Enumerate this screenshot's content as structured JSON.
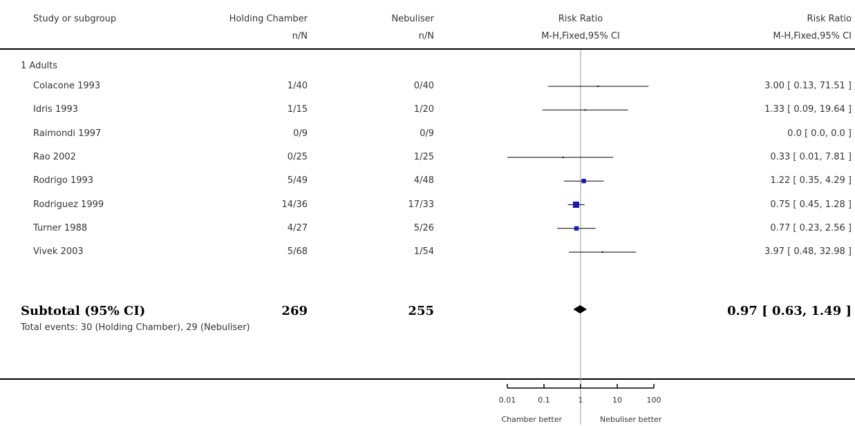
{
  "header": {
    "study": "Study or subgroup",
    "group1": "Holding Chamber",
    "group1_sub": "n/N",
    "group2": "Nebuliser",
    "group2_sub": "n/N",
    "plot_title": "Risk Ratio",
    "plot_sub": "M-H,Fixed,95% CI",
    "effect_title": "Risk Ratio",
    "effect_sub": "M-H,Fixed,95% CI"
  },
  "subgroup_label": "1 Adults",
  "subtotal": {
    "label": "Subtotal (95% CI)",
    "n1": "269",
    "n2": "255",
    "ci_text": "0.97 [ 0.63, 1.49 ]"
  },
  "total_events": "Total events: 30 (Holding Chamber), 29 (Nebuliser)",
  "footer": {
    "left": "Chamber better",
    "right": "Nebuliser better"
  },
  "chart_data": {
    "type": "forest",
    "scale": "log",
    "xlim": [
      0.01,
      100
    ],
    "ticks": [
      "0.01",
      "0.1",
      "1",
      "10",
      "100"
    ],
    "tick_values": [
      0.01,
      0.1,
      1,
      10,
      100
    ],
    "null_value": 1,
    "studies": [
      {
        "name": "Colacone 1993",
        "e1": "1/40",
        "e2": "0/40",
        "rr": 3.0,
        "lo": 0.13,
        "hi": 71.51,
        "weight": 0.05,
        "ci_text": "3.00 [ 0.13, 71.51 ]"
      },
      {
        "name": "Idris 1993",
        "e1": "1/15",
        "e2": "1/20",
        "rr": 1.33,
        "lo": 0.09,
        "hi": 19.64,
        "weight": 0.05,
        "ci_text": "1.33 [ 0.09, 19.64 ]"
      },
      {
        "name": "Raimondi 1997",
        "e1": "0/9",
        "e2": "0/9",
        "rr": null,
        "lo": null,
        "hi": null,
        "weight": 0,
        "ci_text": "0.0 [ 0.0, 0.0 ]"
      },
      {
        "name": "Rao 2002",
        "e1": "0/25",
        "e2": "1/25",
        "rr": 0.33,
        "lo": 0.01,
        "hi": 7.81,
        "weight": 0.05,
        "ci_text": "0.33 [ 0.01, 7.81 ]"
      },
      {
        "name": "Rodrigo 1993",
        "e1": "5/49",
        "e2": "4/48",
        "rr": 1.22,
        "lo": 0.35,
        "hi": 4.29,
        "weight": 0.5,
        "ci_text": "1.22 [ 0.35, 4.29 ]"
      },
      {
        "name": "Rodriguez 1999",
        "e1": "14/36",
        "e2": "17/33",
        "rr": 0.75,
        "lo": 0.45,
        "hi": 1.28,
        "weight": 1.0,
        "ci_text": "0.75 [ 0.45, 1.28 ]"
      },
      {
        "name": "Turner 1988",
        "e1": "4/27",
        "e2": "5/26",
        "rr": 0.77,
        "lo": 0.23,
        "hi": 2.56,
        "weight": 0.5,
        "ci_text": "0.77 [ 0.23, 2.56 ]"
      },
      {
        "name": "Vivek 2003",
        "e1": "5/68",
        "e2": "1/54",
        "rr": 3.97,
        "lo": 0.48,
        "hi": 32.98,
        "weight": 0.05,
        "ci_text": "3.97 [ 0.48, 32.98 ]"
      }
    ],
    "pooled": {
      "rr": 0.97,
      "lo": 0.63,
      "hi": 1.49
    },
    "colors": {
      "marker": "#1a1aa6",
      "line": "#000000",
      "diamond": "#000000",
      "null_line": "#999999"
    }
  }
}
